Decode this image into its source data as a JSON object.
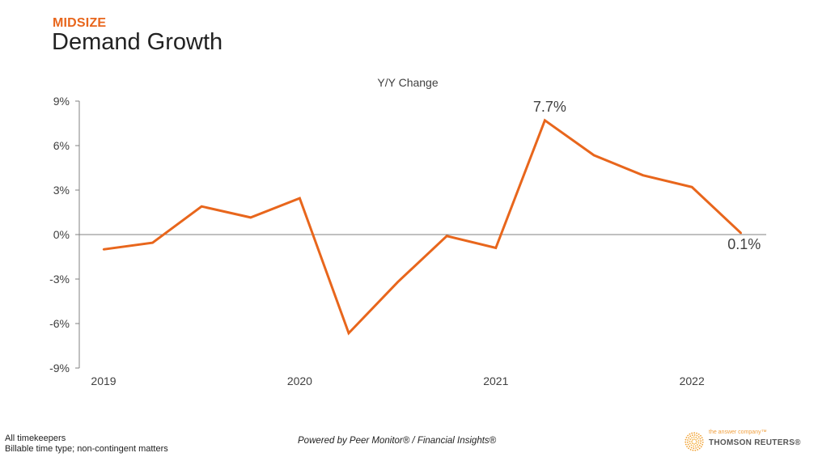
{
  "header": {
    "eyebrow": "MIDSIZE",
    "title": "Demand Growth"
  },
  "colors": {
    "accent": "#e8661c",
    "axis": "#808080",
    "text": "#404040"
  },
  "chart_data": {
    "type": "line",
    "title": "Y/Y Change",
    "xlabel": "",
    "ylabel": "",
    "ylim": [
      -9,
      9
    ],
    "yticks": [
      9,
      6,
      3,
      0,
      -3,
      -6,
      -9
    ],
    "ytick_labels": [
      "9%",
      "6%",
      "3%",
      "0%",
      "-3%",
      "-6%",
      "-9%"
    ],
    "x": [
      "2019 Q1",
      "2019 Q2",
      "2019 Q3",
      "2019 Q4",
      "2020 Q1",
      "2020 Q2",
      "2020 Q3",
      "2020 Q4",
      "2021 Q1",
      "2021 Q2",
      "2021 Q3",
      "2021 Q4",
      "2022 Q1",
      "2022 Q2"
    ],
    "xtick_labels": [
      {
        "index": 0,
        "label": "2019"
      },
      {
        "index": 4,
        "label": "2020"
      },
      {
        "index": 8,
        "label": "2021"
      },
      {
        "index": 12,
        "label": "2022"
      }
    ],
    "series": [
      {
        "name": "Demand Y/Y Change",
        "color": "#e8661c",
        "values": [
          -1.0,
          -0.55,
          1.9,
          1.15,
          2.45,
          -6.65,
          -3.2,
          -0.1,
          -0.9,
          7.7,
          5.35,
          4.0,
          3.2,
          0.1
        ]
      }
    ],
    "annotations": [
      {
        "index": 9,
        "label": "7.7%",
        "position": "above"
      },
      {
        "index": 13,
        "label": "0.1%",
        "position": "below"
      }
    ],
    "grid": false,
    "legend": "none"
  },
  "footer": {
    "note_line1": "All timekeepers",
    "note_line2": "Billable time type; non-contingent matters",
    "powered_by": "Powered by Peer Monitor® / Financial Insights®",
    "logo_tagline": "the answer company™",
    "logo_name": "THOMSON REUTERS®"
  }
}
